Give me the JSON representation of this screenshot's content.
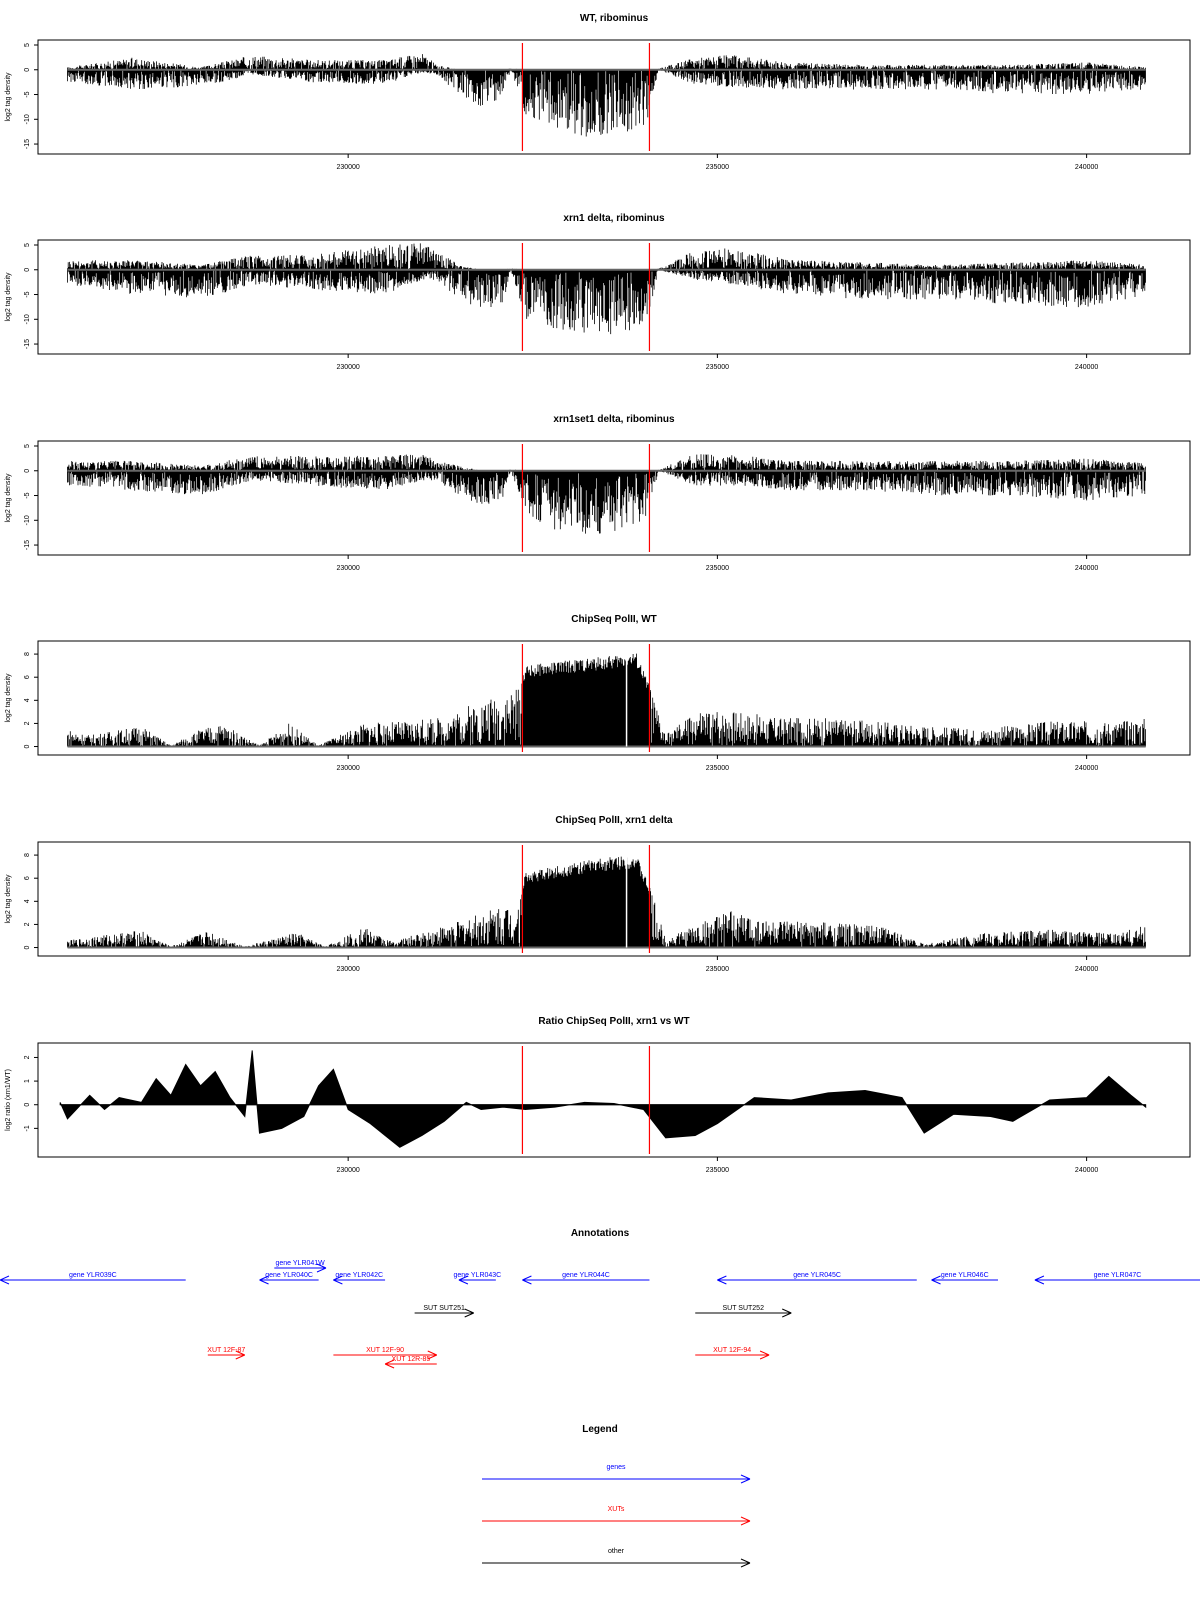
{
  "x_ticks": [
    "230000",
    "235000",
    "240000"
  ],
  "red_markers_x": [
    232360,
    234080
  ],
  "chart_data": [
    {
      "type": "bar",
      "title": "WT, ribominus",
      "ylabel": "log2 tag density",
      "ylim": [
        -16,
        5
      ],
      "yticks": [
        5,
        0,
        -5,
        -10,
        -15
      ],
      "xlim": [
        225800,
        241400
      ],
      "xticks": [
        230000,
        235000,
        240000
      ],
      "baseline": 0,
      "profile": [
        {
          "x": 226200,
          "min": -2.5,
          "max": 0.5
        },
        {
          "x": 227100,
          "min": -4,
          "max": 2.5
        },
        {
          "x": 228000,
          "min": -3.5,
          "max": 0.5
        },
        {
          "x": 228700,
          "min": -1,
          "max": 3
        },
        {
          "x": 229500,
          "min": -2.5,
          "max": 2
        },
        {
          "x": 230500,
          "min": -3,
          "max": 2
        },
        {
          "x": 231000,
          "min": -0.5,
          "max": 3.5
        },
        {
          "x": 231200,
          "min": -1,
          "max": 1
        },
        {
          "x": 231500,
          "min": -5,
          "max": 0
        },
        {
          "x": 231800,
          "min": -7.5,
          "max": 0
        },
        {
          "x": 232100,
          "min": -6,
          "max": 0
        },
        {
          "x": 232200,
          "min": 0,
          "max": 0.3
        },
        {
          "x": 232400,
          "min": -9,
          "max": 0
        },
        {
          "x": 232800,
          "min": -12,
          "max": 0
        },
        {
          "x": 233300,
          "min": -14,
          "max": 0
        },
        {
          "x": 233700,
          "min": -13,
          "max": 0
        },
        {
          "x": 234050,
          "min": -11,
          "max": 0
        },
        {
          "x": 234200,
          "min": 0,
          "max": 0.2
        },
        {
          "x": 234700,
          "min": -3,
          "max": 2.5
        },
        {
          "x": 235200,
          "min": -3.5,
          "max": 3
        },
        {
          "x": 236000,
          "min": -4,
          "max": 1.5
        },
        {
          "x": 237000,
          "min": -4,
          "max": 1
        },
        {
          "x": 238000,
          "min": -4,
          "max": 1
        },
        {
          "x": 239000,
          "min": -5,
          "max": 1
        },
        {
          "x": 240000,
          "min": -5,
          "max": 1.5
        },
        {
          "x": 240800,
          "min": -4,
          "max": 0.5
        }
      ]
    },
    {
      "type": "bar",
      "title": "xrn1 delta, ribominus",
      "ylabel": "log2 tag density",
      "ylim": [
        -16,
        5
      ],
      "yticks": [
        5,
        0,
        -5,
        -10,
        -15
      ],
      "xlim": [
        225800,
        241400
      ],
      "xticks": [
        230000,
        235000,
        240000
      ],
      "baseline": 0,
      "profile": [
        {
          "x": 226200,
          "min": -3,
          "max": 2
        },
        {
          "x": 227100,
          "min": -5,
          "max": 2
        },
        {
          "x": 228000,
          "min": -6,
          "max": 1
        },
        {
          "x": 228700,
          "min": -3,
          "max": 3
        },
        {
          "x": 229500,
          "min": -4,
          "max": 3
        },
        {
          "x": 230500,
          "min": -5,
          "max": 5
        },
        {
          "x": 231000,
          "min": -2,
          "max": 5.5
        },
        {
          "x": 231200,
          "min": -2,
          "max": 4
        },
        {
          "x": 231500,
          "min": -6,
          "max": 1
        },
        {
          "x": 231800,
          "min": -8,
          "max": 0
        },
        {
          "x": 232100,
          "min": -7,
          "max": 0
        },
        {
          "x": 232200,
          "min": 0,
          "max": 0.3
        },
        {
          "x": 232400,
          "min": -10,
          "max": 0
        },
        {
          "x": 232800,
          "min": -12,
          "max": 0
        },
        {
          "x": 233300,
          "min": -13,
          "max": 0
        },
        {
          "x": 233700,
          "min": -13,
          "max": 0
        },
        {
          "x": 234050,
          "min": -11,
          "max": 0
        },
        {
          "x": 234200,
          "min": 0,
          "max": 0.2
        },
        {
          "x": 234700,
          "min": -2,
          "max": 4
        },
        {
          "x": 235200,
          "min": -3,
          "max": 4.5
        },
        {
          "x": 236000,
          "min": -5,
          "max": 2
        },
        {
          "x": 237000,
          "min": -6,
          "max": 1.5
        },
        {
          "x": 238000,
          "min": -6,
          "max": 1
        },
        {
          "x": 239000,
          "min": -7,
          "max": 1.5
        },
        {
          "x": 240000,
          "min": -8,
          "max": 2
        },
        {
          "x": 240800,
          "min": -5,
          "max": 1
        }
      ]
    },
    {
      "type": "bar",
      "title": "xrn1set1 delta, ribominus",
      "ylabel": "log2 tag density",
      "ylim": [
        -16,
        5
      ],
      "yticks": [
        5,
        0,
        -5,
        -10,
        -15
      ],
      "xlim": [
        225800,
        241400
      ],
      "xticks": [
        230000,
        235000,
        240000
      ],
      "baseline": 0,
      "profile": [
        {
          "x": 226200,
          "min": -3,
          "max": 2
        },
        {
          "x": 227100,
          "min": -4,
          "max": 2
        },
        {
          "x": 228000,
          "min": -5,
          "max": 1
        },
        {
          "x": 228700,
          "min": -2,
          "max": 3
        },
        {
          "x": 229500,
          "min": -3,
          "max": 3
        },
        {
          "x": 230500,
          "min": -4,
          "max": 3
        },
        {
          "x": 231000,
          "min": -2,
          "max": 3.5
        },
        {
          "x": 231200,
          "min": -2,
          "max": 2
        },
        {
          "x": 231500,
          "min": -5,
          "max": 1
        },
        {
          "x": 231800,
          "min": -7,
          "max": 0
        },
        {
          "x": 232100,
          "min": -6,
          "max": 0
        },
        {
          "x": 232200,
          "min": 0,
          "max": 0.3
        },
        {
          "x": 232400,
          "min": -9,
          "max": 0
        },
        {
          "x": 232800,
          "min": -12,
          "max": 0
        },
        {
          "x": 233300,
          "min": -13,
          "max": 0
        },
        {
          "x": 233700,
          "min": -12,
          "max": 0
        },
        {
          "x": 234050,
          "min": -10,
          "max": 0
        },
        {
          "x": 234200,
          "min": 0,
          "max": 0.2
        },
        {
          "x": 234700,
          "min": -3,
          "max": 3.5
        },
        {
          "x": 235200,
          "min": -3,
          "max": 3.5
        },
        {
          "x": 236000,
          "min": -4,
          "max": 2
        },
        {
          "x": 237000,
          "min": -4,
          "max": 2
        },
        {
          "x": 238000,
          "min": -5,
          "max": 2
        },
        {
          "x": 239000,
          "min": -5,
          "max": 2
        },
        {
          "x": 240000,
          "min": -6,
          "max": 2.5
        },
        {
          "x": 240800,
          "min": -5,
          "max": 1.5
        }
      ]
    },
    {
      "type": "bar",
      "title": "ChipSeq PolII, WT",
      "ylabel": "log2 tag density",
      "ylim": [
        -0.3,
        8.7
      ],
      "yticks": [
        0,
        2,
        4,
        6,
        8
      ],
      "xlim": [
        225800,
        241400
      ],
      "xticks": [
        230000,
        235000,
        240000
      ],
      "baseline": 0,
      "profile": [
        {
          "x": 226200,
          "min": 0,
          "max": 1.5
        },
        {
          "x": 226500,
          "min": 0,
          "max": 1
        },
        {
          "x": 227200,
          "min": 0,
          "max": 1.8
        },
        {
          "x": 227600,
          "min": 0,
          "max": 0.1
        },
        {
          "x": 228000,
          "min": 0,
          "max": 1.5
        },
        {
          "x": 228300,
          "min": 0,
          "max": 2
        },
        {
          "x": 228800,
          "min": 0,
          "max": 0.1
        },
        {
          "x": 229200,
          "min": 0,
          "max": 2
        },
        {
          "x": 229600,
          "min": 0,
          "max": 0.1
        },
        {
          "x": 230200,
          "min": 0,
          "max": 2
        },
        {
          "x": 230800,
          "min": 0,
          "max": 2.2
        },
        {
          "x": 231300,
          "min": 0,
          "max": 2.5
        },
        {
          "x": 231600,
          "min": 0,
          "max": 3.5
        },
        {
          "x": 232000,
          "min": 0,
          "max": 4.5
        },
        {
          "x": 232300,
          "min": 0,
          "max": 5
        },
        {
          "x": 232400,
          "min": 0,
          "max": 7
        },
        {
          "x": 233000,
          "min": 0,
          "max": 7.5
        },
        {
          "x": 233500,
          "min": 0,
          "max": 7.8
        },
        {
          "x": 233900,
          "min": 0,
          "max": 8.2
        },
        {
          "x": 234100,
          "min": 0,
          "max": 5
        },
        {
          "x": 234300,
          "min": 0,
          "max": 1
        },
        {
          "x": 234700,
          "min": 0,
          "max": 3
        },
        {
          "x": 235200,
          "min": 0,
          "max": 3.2
        },
        {
          "x": 235800,
          "min": 0,
          "max": 2.5
        },
        {
          "x": 236500,
          "min": 0,
          "max": 2.5
        },
        {
          "x": 237500,
          "min": 0,
          "max": 2
        },
        {
          "x": 238500,
          "min": 0,
          "max": 1.5
        },
        {
          "x": 239500,
          "min": 0,
          "max": 2.2
        },
        {
          "x": 240400,
          "min": 0,
          "max": 2.2
        },
        {
          "x": 240800,
          "min": 0,
          "max": 2.5
        }
      ]
    },
    {
      "type": "bar",
      "title": "ChipSeq PolII, xrn1 delta",
      "ylabel": "log2 tag density",
      "ylim": [
        -0.3,
        8.7
      ],
      "yticks": [
        0,
        2,
        4,
        6,
        8
      ],
      "xlim": [
        225800,
        241400
      ],
      "xticks": [
        230000,
        235000,
        240000
      ],
      "baseline": 0,
      "profile": [
        {
          "x": 226200,
          "min": 0,
          "max": 0.6
        },
        {
          "x": 226800,
          "min": 0,
          "max": 1.2
        },
        {
          "x": 227200,
          "min": 0,
          "max": 1.5
        },
        {
          "x": 227600,
          "min": 0,
          "max": 0.1
        },
        {
          "x": 228100,
          "min": 0,
          "max": 1.5
        },
        {
          "x": 228600,
          "min": 0,
          "max": 0.1
        },
        {
          "x": 229300,
          "min": 0,
          "max": 1.3
        },
        {
          "x": 229700,
          "min": 0,
          "max": 0.1
        },
        {
          "x": 230200,
          "min": 0,
          "max": 1.8
        },
        {
          "x": 230600,
          "min": 0,
          "max": 0.5
        },
        {
          "x": 231100,
          "min": 0,
          "max": 1.5
        },
        {
          "x": 231600,
          "min": 0,
          "max": 2.5
        },
        {
          "x": 232000,
          "min": 0,
          "max": 3.5
        },
        {
          "x": 232300,
          "min": 0,
          "max": 4
        },
        {
          "x": 232400,
          "min": 0,
          "max": 6.5
        },
        {
          "x": 233000,
          "min": 0,
          "max": 7.3
        },
        {
          "x": 233500,
          "min": 0,
          "max": 7.8
        },
        {
          "x": 233900,
          "min": 0,
          "max": 8.1
        },
        {
          "x": 234100,
          "min": 0,
          "max": 5
        },
        {
          "x": 234300,
          "min": 0,
          "max": 0.8
        },
        {
          "x": 234700,
          "min": 0,
          "max": 2
        },
        {
          "x": 235200,
          "min": 0,
          "max": 3.2
        },
        {
          "x": 235800,
          "min": 0,
          "max": 2.3
        },
        {
          "x": 236500,
          "min": 0,
          "max": 2.2
        },
        {
          "x": 237300,
          "min": 0,
          "max": 1.8
        },
        {
          "x": 237800,
          "min": 0,
          "max": 0.3
        },
        {
          "x": 238500,
          "min": 0,
          "max": 1.2
        },
        {
          "x": 239500,
          "min": 0,
          "max": 1.6
        },
        {
          "x": 240400,
          "min": 0,
          "max": 1.2
        },
        {
          "x": 240800,
          "min": 0,
          "max": 2
        }
      ]
    },
    {
      "type": "area",
      "title": "Ratio ChipSeq PolII, xrn1 vs WT",
      "ylabel": "log2 ratio (xrn1/WT)",
      "ylim": [
        -2,
        2.4
      ],
      "yticks": [
        2,
        1,
        0,
        -1
      ],
      "xlim": [
        225800,
        241400
      ],
      "xticks": [
        230000,
        235000,
        240000
      ],
      "baseline": 0,
      "curve": [
        {
          "x": 226100,
          "y": 0.1
        },
        {
          "x": 226200,
          "y": -0.6
        },
        {
          "x": 226500,
          "y": 0.4
        },
        {
          "x": 226700,
          "y": -0.2
        },
        {
          "x": 226900,
          "y": 0.3
        },
        {
          "x": 227200,
          "y": 0.1
        },
        {
          "x": 227400,
          "y": 1.1
        },
        {
          "x": 227600,
          "y": 0.4
        },
        {
          "x": 227800,
          "y": 1.7
        },
        {
          "x": 228000,
          "y": 0.8
        },
        {
          "x": 228200,
          "y": 1.4
        },
        {
          "x": 228400,
          "y": 0.3
        },
        {
          "x": 228600,
          "y": -0.5
        },
        {
          "x": 228700,
          "y": 2.3
        },
        {
          "x": 228800,
          "y": -1.2
        },
        {
          "x": 229100,
          "y": -1
        },
        {
          "x": 229400,
          "y": -0.5
        },
        {
          "x": 229600,
          "y": 0.8
        },
        {
          "x": 229800,
          "y": 1.5
        },
        {
          "x": 230000,
          "y": -0.2
        },
        {
          "x": 230300,
          "y": -0.8
        },
        {
          "x": 230700,
          "y": -1.8
        },
        {
          "x": 231000,
          "y": -1.3
        },
        {
          "x": 231300,
          "y": -0.7
        },
        {
          "x": 231600,
          "y": 0.1
        },
        {
          "x": 231800,
          "y": -0.2
        },
        {
          "x": 232100,
          "y": -0.1
        },
        {
          "x": 232400,
          "y": -0.2
        },
        {
          "x": 232800,
          "y": -0.1
        },
        {
          "x": 233200,
          "y": 0.1
        },
        {
          "x": 233600,
          "y": 0.05
        },
        {
          "x": 234000,
          "y": -0.2
        },
        {
          "x": 234300,
          "y": -1.4
        },
        {
          "x": 234700,
          "y": -1.3
        },
        {
          "x": 235000,
          "y": -0.8
        },
        {
          "x": 235500,
          "y": 0.3
        },
        {
          "x": 236000,
          "y": 0.2
        },
        {
          "x": 236500,
          "y": 0.5
        },
        {
          "x": 237000,
          "y": 0.6
        },
        {
          "x": 237500,
          "y": 0.3
        },
        {
          "x": 237800,
          "y": -1.2
        },
        {
          "x": 238200,
          "y": -0.4
        },
        {
          "x": 238700,
          "y": -0.5
        },
        {
          "x": 239000,
          "y": -0.7
        },
        {
          "x": 239500,
          "y": 0.2
        },
        {
          "x": 240000,
          "y": 0.3
        },
        {
          "x": 240300,
          "y": 1.2
        },
        {
          "x": 240600,
          "y": 0.4
        },
        {
          "x": 240800,
          "y": -0.1
        }
      ]
    }
  ],
  "annotations": {
    "title": "Annotations",
    "features": [
      {
        "label": "gene YLR039C",
        "kind": "gene",
        "from": 227800,
        "to": 224600,
        "row": 2
      },
      {
        "label": "gene YLR040C",
        "kind": "gene",
        "from": 229600,
        "to": 228800,
        "row": 2
      },
      {
        "label": "gene YLR041W",
        "kind": "gene",
        "from": 229000,
        "to": 229700,
        "row": 1
      },
      {
        "label": "gene YLR042C",
        "kind": "gene",
        "from": 230500,
        "to": 229800,
        "row": 2
      },
      {
        "label": "gene YLR043C",
        "kind": "gene",
        "from": 232000,
        "to": 231500,
        "row": 2
      },
      {
        "label": "gene YLR044C",
        "kind": "gene",
        "from": 234080,
        "to": 232360,
        "row": 2
      },
      {
        "label": "gene YLR045C",
        "kind": "gene",
        "from": 237700,
        "to": 235000,
        "row": 2
      },
      {
        "label": "gene YLR046C",
        "kind": "gene",
        "from": 238800,
        "to": 237900,
        "row": 2
      },
      {
        "label": "gene YLR047C",
        "kind": "gene",
        "from": 242000,
        "to": 239300,
        "row": 2
      },
      {
        "label": "SUT SUT251",
        "kind": "other",
        "from": 230900,
        "to": 231700,
        "row": 3
      },
      {
        "label": "SUT SUT252",
        "kind": "other",
        "from": 234700,
        "to": 236000,
        "row": 3
      },
      {
        "label": "XUT 12F-87",
        "kind": "xut",
        "from": 228100,
        "to": 228600,
        "row": 4
      },
      {
        "label": "XUT 12F-90",
        "kind": "xut",
        "from": 229800,
        "to": 231200,
        "row": 4
      },
      {
        "label": "XUT 12R-85",
        "kind": "xut",
        "from": 231200,
        "to": 230500,
        "row": 5
      },
      {
        "label": "XUT 12F-94",
        "kind": "xut",
        "from": 234700,
        "to": 235700,
        "row": 4
      }
    ]
  },
  "legend": {
    "title": "Legend",
    "items": [
      {
        "label": "genes",
        "kind": "gene"
      },
      {
        "label": "XUTs",
        "kind": "xut"
      },
      {
        "label": "other",
        "kind": "other"
      }
    ]
  },
  "colors": {
    "gene": "#0000ff",
    "xut": "#ff0000",
    "other": "#000000",
    "marker": "#ff0000",
    "data": "#000000",
    "frame": "#000000"
  }
}
